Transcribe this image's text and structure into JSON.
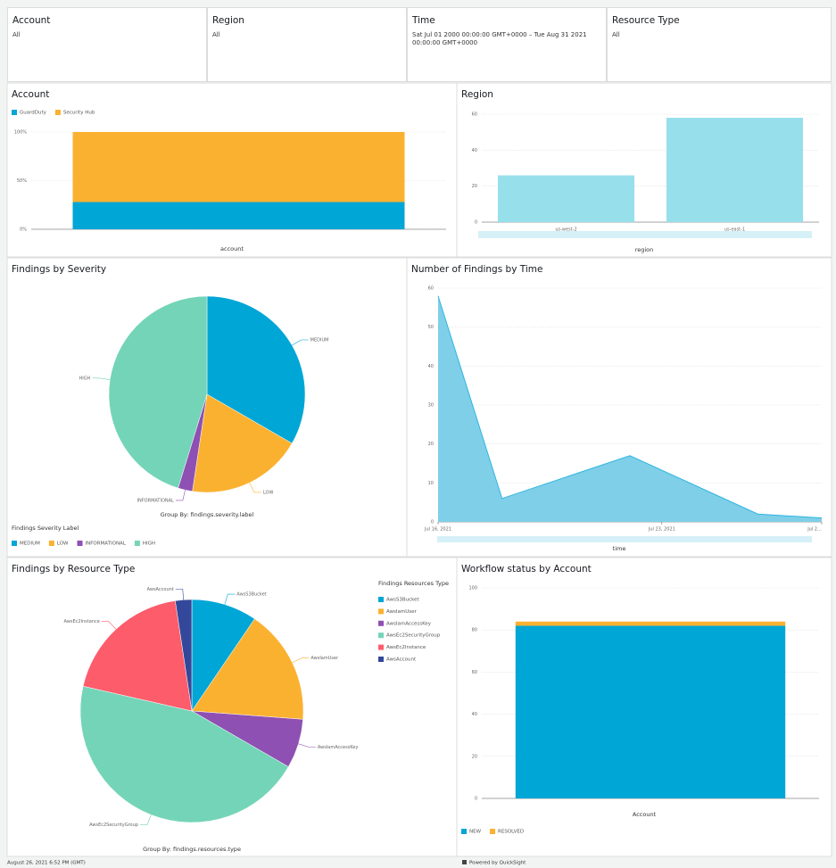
{
  "filters": [
    {
      "label": "Account",
      "value": "All"
    },
    {
      "label": "Region",
      "value": "All"
    },
    {
      "label": "Time",
      "value": "Sat Jul 01 2000 00:00:00 GMT+0000 – Tue Aug 31 2021 00:00:00 GMT+0000"
    },
    {
      "label": "Resource Type",
      "value": "All"
    }
  ],
  "chart_data": [
    {
      "type": "bar",
      "title": "Account",
      "stacked": true,
      "categories": [
        null
      ],
      "xlabel": "account",
      "series": [
        {
          "name": "GuardDuty",
          "color": "#00a6d6",
          "values": [
            28
          ]
        },
        {
          "name": "Security Hub",
          "color": "#fbb130",
          "values": [
            72
          ]
        }
      ],
      "ylim": [
        0,
        100
      ],
      "yticks": [
        {
          "value": 0,
          "label": "0%"
        },
        {
          "value": 50,
          "label": "50%"
        },
        {
          "value": 100,
          "label": "100%"
        }
      ],
      "grid": true,
      "legend": "top"
    },
    {
      "type": "bar",
      "title": "Region",
      "categories": [
        "us-west-2",
        "us-east-1"
      ],
      "values": [
        26,
        58
      ],
      "color": "#98dfec",
      "xlabel": "region",
      "ylim": [
        0,
        60
      ],
      "yticks": [
        0,
        20,
        40,
        60
      ],
      "grid": true
    },
    {
      "type": "pie",
      "title": "Findings by Severity",
      "categories": [
        "MEDIUM",
        "LOW",
        "INFORMATIONAL",
        "HIGH"
      ],
      "values": [
        28,
        16,
        2,
        38
      ],
      "colors": [
        "#00a6d6",
        "#fbb130",
        "#8e50b2",
        "#74d4b7"
      ],
      "caption": "Group By: findings.severity.label",
      "legend_title": "Findings Severity Label",
      "legend": "bottom"
    },
    {
      "type": "area",
      "title": "Number of Findings by Time",
      "xlabel": "time",
      "x": [
        "2021-07-16",
        "2021-07-18",
        "2021-07-22",
        "2021-07-26",
        "2021-07-28"
      ],
      "values": [
        58,
        6,
        17,
        2,
        1
      ],
      "color": "#2fb5e0",
      "xlim": [
        "2021-07-16",
        "2021-07-28"
      ],
      "xticks": [
        {
          "value": "2021-07-16",
          "label": "Jul 16, 2021"
        },
        {
          "value": "2021-07-23",
          "label": "Jul 23, 2021"
        },
        {
          "value": "2021-07-28",
          "label": "Jul 2…"
        }
      ],
      "ylim": [
        0,
        60
      ],
      "yticks": [
        0,
        10,
        20,
        30,
        40,
        50,
        60
      ],
      "grid": true
    },
    {
      "type": "pie",
      "title": "Findings by Resource Type",
      "categories": [
        "AwsS3Bucket",
        "AwsIamUser",
        "AwsIamAccessKey",
        "AwsEc2SecurityGroup",
        "AwsEc2Instance",
        "AwsAccount"
      ],
      "values": [
        8,
        14,
        6,
        38,
        16,
        2
      ],
      "colors": [
        "#00a6d6",
        "#fbb130",
        "#8e50b2",
        "#74d4b7",
        "#fd5c6b",
        "#33489a"
      ],
      "caption": "Group By: findings.resources.type",
      "legend_title": "Findings Resources Type",
      "legend": "right"
    },
    {
      "type": "bar",
      "title": "Workflow status by Account",
      "stacked": true,
      "categories": [
        null
      ],
      "xlabel": "Account",
      "series": [
        {
          "name": "NEW",
          "color": "#00a6d6",
          "values": [
            82
          ]
        },
        {
          "name": "RESOLVED",
          "color": "#fbb130",
          "values": [
            2
          ]
        }
      ],
      "ylim": [
        0,
        100
      ],
      "yticks": [
        0,
        20,
        40,
        60,
        80,
        100
      ],
      "grid": true,
      "legend": "bottom"
    }
  ],
  "footer": {
    "timestamp": "August 26, 2021 6:52 PM (GMT)",
    "powered_by": "Powered by QuickSight"
  }
}
